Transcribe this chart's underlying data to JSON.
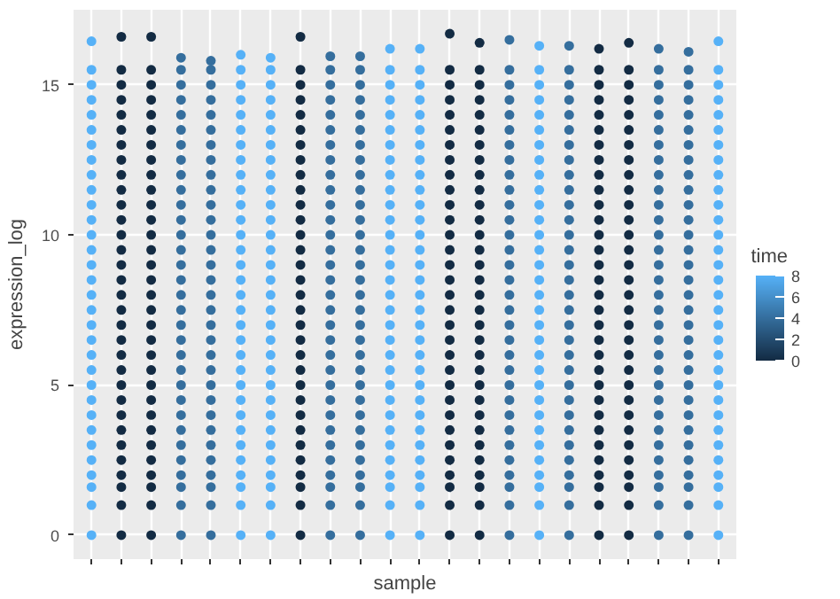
{
  "chart_data": {
    "type": "scatter",
    "xlabel": "sample",
    "ylabel": "expression_log",
    "clabel": "time",
    "categories": [
      null,
      null,
      null,
      null,
      null,
      null,
      null,
      null,
      null,
      null,
      null,
      null,
      null,
      null,
      null,
      null,
      null,
      null,
      null,
      null,
      null,
      null
    ],
    "ylim": [
      -0.8,
      17.5
    ],
    "yticks": [
      0,
      5,
      10,
      15
    ],
    "clim": [
      0,
      8
    ],
    "cticks": [
      0,
      2,
      4,
      6,
      8
    ],
    "grid": true,
    "marker": "circle",
    "series": [
      {
        "values": [
          0,
          0,
          0,
          0,
          0,
          0,
          0,
          0,
          0,
          0,
          0,
          0,
          0,
          0,
          0,
          0,
          0,
          0,
          0,
          0,
          0,
          0
        ],
        "colors": [
          "#56b1f7",
          "#132b43",
          "#132b43",
          "#356e9d",
          "#356e9d",
          "#56b1f7",
          "#56b1f7",
          "#132b43",
          "#356e9d",
          "#356e9d",
          "#56b1f7",
          "#56b1f7",
          "#132b43",
          "#132b43",
          "#356e9d",
          "#56b1f7",
          "#356e9d",
          "#132b43",
          "#132b43",
          "#356e9d",
          "#356e9d",
          "#56b1f7"
        ]
      },
      {
        "values": [
          1,
          1,
          1,
          1,
          1,
          1,
          1,
          1,
          1,
          1,
          1,
          1,
          1,
          1,
          1,
          1,
          1,
          1,
          1,
          1,
          1,
          1
        ],
        "colors": [
          "#56b1f7",
          "#132b43",
          "#132b43",
          "#356e9d",
          "#356e9d",
          "#56b1f7",
          "#56b1f7",
          "#132b43",
          "#356e9d",
          "#356e9d",
          "#56b1f7",
          "#56b1f7",
          "#132b43",
          "#132b43",
          "#356e9d",
          "#56b1f7",
          "#356e9d",
          "#132b43",
          "#132b43",
          "#356e9d",
          "#356e9d",
          "#56b1f7"
        ]
      },
      {
        "values": [
          1.6,
          1.6,
          1.6,
          1.6,
          1.6,
          1.6,
          1.6,
          1.6,
          1.6,
          1.6,
          1.6,
          1.6,
          1.6,
          1.6,
          1.6,
          1.6,
          1.6,
          1.6,
          1.6,
          1.6,
          1.6,
          1.6
        ],
        "colors": [
          "#56b1f7",
          "#132b43",
          "#132b43",
          "#356e9d",
          "#356e9d",
          "#56b1f7",
          "#56b1f7",
          "#132b43",
          "#356e9d",
          "#356e9d",
          "#56b1f7",
          "#56b1f7",
          "#132b43",
          "#132b43",
          "#356e9d",
          "#56b1f7",
          "#356e9d",
          "#132b43",
          "#132b43",
          "#356e9d",
          "#356e9d",
          "#56b1f7"
        ]
      },
      {
        "values": [
          2,
          2,
          2,
          2,
          2,
          2,
          2,
          2,
          2,
          2,
          2,
          2,
          2,
          2,
          2,
          2,
          2,
          2,
          2,
          2,
          2,
          2
        ],
        "colors": [
          "#56b1f7",
          "#132b43",
          "#132b43",
          "#356e9d",
          "#356e9d",
          "#56b1f7",
          "#56b1f7",
          "#132b43",
          "#356e9d",
          "#356e9d",
          "#56b1f7",
          "#56b1f7",
          "#132b43",
          "#132b43",
          "#356e9d",
          "#56b1f7",
          "#356e9d",
          "#132b43",
          "#132b43",
          "#356e9d",
          "#356e9d",
          "#56b1f7"
        ]
      },
      {
        "values": [
          2.5,
          2.5,
          2.5,
          2.5,
          2.5,
          2.5,
          2.5,
          2.5,
          2.5,
          2.5,
          2.5,
          2.5,
          2.5,
          2.5,
          2.5,
          2.5,
          2.5,
          2.5,
          2.5,
          2.5,
          2.5,
          2.5
        ],
        "colors": [
          "#56b1f7",
          "#132b43",
          "#132b43",
          "#356e9d",
          "#356e9d",
          "#56b1f7",
          "#56b1f7",
          "#132b43",
          "#356e9d",
          "#356e9d",
          "#56b1f7",
          "#56b1f7",
          "#132b43",
          "#132b43",
          "#356e9d",
          "#56b1f7",
          "#356e9d",
          "#132b43",
          "#132b43",
          "#356e9d",
          "#356e9d",
          "#56b1f7"
        ]
      },
      {
        "values": [
          3,
          3,
          3,
          3,
          3,
          3,
          3,
          3,
          3,
          3,
          3,
          3,
          3,
          3,
          3,
          3,
          3,
          3,
          3,
          3,
          3,
          3
        ],
        "colors": [
          "#56b1f7",
          "#132b43",
          "#132b43",
          "#356e9d",
          "#356e9d",
          "#56b1f7",
          "#56b1f7",
          "#132b43",
          "#356e9d",
          "#356e9d",
          "#56b1f7",
          "#56b1f7",
          "#132b43",
          "#132b43",
          "#356e9d",
          "#56b1f7",
          "#356e9d",
          "#132b43",
          "#132b43",
          "#356e9d",
          "#356e9d",
          "#56b1f7"
        ]
      },
      {
        "values": [
          3.5,
          3.5,
          3.5,
          3.5,
          3.5,
          3.5,
          3.5,
          3.5,
          3.5,
          3.5,
          3.5,
          3.5,
          3.5,
          3.5,
          3.5,
          3.5,
          3.5,
          3.5,
          3.5,
          3.5,
          3.5,
          3.5
        ],
        "colors": [
          "#56b1f7",
          "#132b43",
          "#132b43",
          "#356e9d",
          "#356e9d",
          "#56b1f7",
          "#56b1f7",
          "#132b43",
          "#356e9d",
          "#356e9d",
          "#56b1f7",
          "#56b1f7",
          "#132b43",
          "#132b43",
          "#356e9d",
          "#56b1f7",
          "#356e9d",
          "#132b43",
          "#132b43",
          "#356e9d",
          "#356e9d",
          "#56b1f7"
        ]
      },
      {
        "values": [
          4,
          4,
          4,
          4,
          4,
          4,
          4,
          4,
          4,
          4,
          4,
          4,
          4,
          4,
          4,
          4,
          4,
          4,
          4,
          4,
          4,
          4
        ],
        "colors": [
          "#56b1f7",
          "#132b43",
          "#132b43",
          "#356e9d",
          "#356e9d",
          "#56b1f7",
          "#56b1f7",
          "#132b43",
          "#356e9d",
          "#356e9d",
          "#56b1f7",
          "#56b1f7",
          "#132b43",
          "#132b43",
          "#356e9d",
          "#56b1f7",
          "#356e9d",
          "#132b43",
          "#132b43",
          "#356e9d",
          "#356e9d",
          "#56b1f7"
        ]
      },
      {
        "values": [
          4.5,
          4.5,
          4.5,
          4.5,
          4.5,
          4.5,
          4.5,
          4.5,
          4.5,
          4.5,
          4.5,
          4.5,
          4.5,
          4.5,
          4.5,
          4.5,
          4.5,
          4.5,
          4.5,
          4.5,
          4.5,
          4.5
        ],
        "colors": [
          "#56b1f7",
          "#132b43",
          "#132b43",
          "#356e9d",
          "#356e9d",
          "#56b1f7",
          "#56b1f7",
          "#132b43",
          "#356e9d",
          "#356e9d",
          "#56b1f7",
          "#56b1f7",
          "#132b43",
          "#132b43",
          "#356e9d",
          "#56b1f7",
          "#356e9d",
          "#132b43",
          "#132b43",
          "#356e9d",
          "#356e9d",
          "#56b1f7"
        ]
      },
      {
        "values": [
          5,
          5,
          5,
          5,
          5,
          5,
          5,
          5,
          5,
          5,
          5,
          5,
          5,
          5,
          5,
          5,
          5,
          5,
          5,
          5,
          5,
          5
        ],
        "colors": [
          "#56b1f7",
          "#132b43",
          "#132b43",
          "#356e9d",
          "#356e9d",
          "#56b1f7",
          "#56b1f7",
          "#132b43",
          "#356e9d",
          "#356e9d",
          "#56b1f7",
          "#56b1f7",
          "#132b43",
          "#132b43",
          "#356e9d",
          "#56b1f7",
          "#356e9d",
          "#132b43",
          "#132b43",
          "#356e9d",
          "#356e9d",
          "#56b1f7"
        ]
      },
      {
        "values": [
          5.5,
          5.5,
          5.5,
          5.5,
          5.5,
          5.5,
          5.5,
          5.5,
          5.5,
          5.5,
          5.5,
          5.5,
          5.5,
          5.5,
          5.5,
          5.5,
          5.5,
          5.5,
          5.5,
          5.5,
          5.5,
          5.5
        ],
        "colors": [
          "#56b1f7",
          "#132b43",
          "#132b43",
          "#356e9d",
          "#356e9d",
          "#56b1f7",
          "#56b1f7",
          "#132b43",
          "#356e9d",
          "#356e9d",
          "#56b1f7",
          "#56b1f7",
          "#132b43",
          "#132b43",
          "#356e9d",
          "#56b1f7",
          "#356e9d",
          "#132b43",
          "#132b43",
          "#356e9d",
          "#356e9d",
          "#56b1f7"
        ]
      },
      {
        "values": [
          6,
          6,
          6,
          6,
          6,
          6,
          6,
          6,
          6,
          6,
          6,
          6,
          6,
          6,
          6,
          6,
          6,
          6,
          6,
          6,
          6,
          6
        ],
        "colors": [
          "#56b1f7",
          "#132b43",
          "#132b43",
          "#356e9d",
          "#356e9d",
          "#56b1f7",
          "#56b1f7",
          "#132b43",
          "#356e9d",
          "#356e9d",
          "#56b1f7",
          "#56b1f7",
          "#132b43",
          "#132b43",
          "#356e9d",
          "#56b1f7",
          "#356e9d",
          "#132b43",
          "#132b43",
          "#356e9d",
          "#356e9d",
          "#56b1f7"
        ]
      },
      {
        "values": [
          6.5,
          6.5,
          6.5,
          6.5,
          6.5,
          6.5,
          6.5,
          6.5,
          6.5,
          6.5,
          6.5,
          6.5,
          6.5,
          6.5,
          6.5,
          6.5,
          6.5,
          6.5,
          6.5,
          6.5,
          6.5,
          6.5
        ],
        "colors": [
          "#56b1f7",
          "#132b43",
          "#132b43",
          "#356e9d",
          "#356e9d",
          "#56b1f7",
          "#56b1f7",
          "#132b43",
          "#356e9d",
          "#356e9d",
          "#56b1f7",
          "#56b1f7",
          "#132b43",
          "#132b43",
          "#356e9d",
          "#56b1f7",
          "#356e9d",
          "#132b43",
          "#132b43",
          "#356e9d",
          "#356e9d",
          "#56b1f7"
        ]
      },
      {
        "values": [
          7,
          7,
          7,
          7,
          7,
          7,
          7,
          7,
          7,
          7,
          7,
          7,
          7,
          7,
          7,
          7,
          7,
          7,
          7,
          7,
          7,
          7
        ],
        "colors": [
          "#56b1f7",
          "#132b43",
          "#132b43",
          "#356e9d",
          "#356e9d",
          "#56b1f7",
          "#56b1f7",
          "#132b43",
          "#356e9d",
          "#356e9d",
          "#56b1f7",
          "#56b1f7",
          "#132b43",
          "#132b43",
          "#356e9d",
          "#56b1f7",
          "#356e9d",
          "#132b43",
          "#132b43",
          "#356e9d",
          "#356e9d",
          "#56b1f7"
        ]
      },
      {
        "values": [
          7.5,
          7.5,
          7.5,
          7.5,
          7.5,
          7.5,
          7.5,
          7.5,
          7.5,
          7.5,
          7.5,
          7.5,
          7.5,
          7.5,
          7.5,
          7.5,
          7.5,
          7.5,
          7.5,
          7.5,
          7.5,
          7.5
        ],
        "colors": [
          "#56b1f7",
          "#132b43",
          "#132b43",
          "#356e9d",
          "#356e9d",
          "#56b1f7",
          "#56b1f7",
          "#132b43",
          "#356e9d",
          "#356e9d",
          "#56b1f7",
          "#56b1f7",
          "#132b43",
          "#132b43",
          "#356e9d",
          "#56b1f7",
          "#356e9d",
          "#132b43",
          "#132b43",
          "#356e9d",
          "#356e9d",
          "#56b1f7"
        ]
      },
      {
        "values": [
          8,
          8,
          8,
          8,
          8,
          8,
          8,
          8,
          8,
          8,
          8,
          8,
          8,
          8,
          8,
          8,
          8,
          8,
          8,
          8,
          8,
          8
        ],
        "colors": [
          "#56b1f7",
          "#132b43",
          "#132b43",
          "#356e9d",
          "#356e9d",
          "#56b1f7",
          "#56b1f7",
          "#132b43",
          "#356e9d",
          "#356e9d",
          "#56b1f7",
          "#56b1f7",
          "#132b43",
          "#132b43",
          "#356e9d",
          "#56b1f7",
          "#356e9d",
          "#132b43",
          "#132b43",
          "#356e9d",
          "#356e9d",
          "#56b1f7"
        ]
      },
      {
        "values": [
          8.5,
          8.5,
          8.5,
          8.5,
          8.5,
          8.5,
          8.5,
          8.5,
          8.5,
          8.5,
          8.5,
          8.5,
          8.5,
          8.5,
          8.5,
          8.5,
          8.5,
          8.5,
          8.5,
          8.5,
          8.5,
          8.5
        ],
        "colors": [
          "#56b1f7",
          "#132b43",
          "#132b43",
          "#356e9d",
          "#356e9d",
          "#56b1f7",
          "#56b1f7",
          "#132b43",
          "#356e9d",
          "#356e9d",
          "#56b1f7",
          "#56b1f7",
          "#132b43",
          "#132b43",
          "#356e9d",
          "#56b1f7",
          "#356e9d",
          "#132b43",
          "#132b43",
          "#356e9d",
          "#356e9d",
          "#56b1f7"
        ]
      },
      {
        "values": [
          9,
          9,
          9,
          9,
          9,
          9,
          9,
          9,
          9,
          9,
          9,
          9,
          9,
          9,
          9,
          9,
          9,
          9,
          9,
          9,
          9,
          9
        ],
        "colors": [
          "#56b1f7",
          "#132b43",
          "#132b43",
          "#356e9d",
          "#356e9d",
          "#56b1f7",
          "#56b1f7",
          "#132b43",
          "#356e9d",
          "#356e9d",
          "#56b1f7",
          "#56b1f7",
          "#132b43",
          "#132b43",
          "#356e9d",
          "#56b1f7",
          "#356e9d",
          "#132b43",
          "#132b43",
          "#356e9d",
          "#356e9d",
          "#56b1f7"
        ]
      },
      {
        "values": [
          9.5,
          9.5,
          9.5,
          9.5,
          9.5,
          9.5,
          9.5,
          9.5,
          9.5,
          9.5,
          9.5,
          9.5,
          9.5,
          9.5,
          9.5,
          9.5,
          9.5,
          9.5,
          9.5,
          9.5,
          9.5,
          9.5
        ],
        "colors": [
          "#56b1f7",
          "#132b43",
          "#132b43",
          "#356e9d",
          "#356e9d",
          "#56b1f7",
          "#56b1f7",
          "#132b43",
          "#356e9d",
          "#356e9d",
          "#56b1f7",
          "#56b1f7",
          "#132b43",
          "#132b43",
          "#356e9d",
          "#56b1f7",
          "#356e9d",
          "#132b43",
          "#132b43",
          "#356e9d",
          "#356e9d",
          "#56b1f7"
        ]
      },
      {
        "values": [
          10,
          10,
          10,
          10,
          10,
          10,
          10,
          10,
          10,
          10,
          10,
          10,
          10,
          10,
          10,
          10,
          10,
          10,
          10,
          10,
          10,
          10
        ],
        "colors": [
          "#56b1f7",
          "#132b43",
          "#132b43",
          "#356e9d",
          "#356e9d",
          "#56b1f7",
          "#56b1f7",
          "#132b43",
          "#356e9d",
          "#356e9d",
          "#56b1f7",
          "#56b1f7",
          "#132b43",
          "#132b43",
          "#356e9d",
          "#56b1f7",
          "#356e9d",
          "#132b43",
          "#132b43",
          "#356e9d",
          "#356e9d",
          "#56b1f7"
        ]
      },
      {
        "values": [
          10.5,
          10.5,
          10.5,
          10.5,
          10.5,
          10.5,
          10.5,
          10.5,
          10.5,
          10.5,
          10.5,
          10.5,
          10.5,
          10.5,
          10.5,
          10.5,
          10.5,
          10.5,
          10.5,
          10.5,
          10.5,
          10.5
        ],
        "colors": [
          "#56b1f7",
          "#132b43",
          "#132b43",
          "#356e9d",
          "#356e9d",
          "#56b1f7",
          "#56b1f7",
          "#132b43",
          "#356e9d",
          "#356e9d",
          "#56b1f7",
          "#56b1f7",
          "#132b43",
          "#132b43",
          "#356e9d",
          "#56b1f7",
          "#356e9d",
          "#132b43",
          "#132b43",
          "#356e9d",
          "#356e9d",
          "#56b1f7"
        ]
      },
      {
        "values": [
          11,
          11,
          11,
          11,
          11,
          11,
          11,
          11,
          11,
          11,
          11,
          11,
          11,
          11,
          11,
          11,
          11,
          11,
          11,
          11,
          11,
          11
        ],
        "colors": [
          "#56b1f7",
          "#132b43",
          "#132b43",
          "#356e9d",
          "#356e9d",
          "#56b1f7",
          "#56b1f7",
          "#132b43",
          "#356e9d",
          "#356e9d",
          "#56b1f7",
          "#56b1f7",
          "#132b43",
          "#132b43",
          "#356e9d",
          "#56b1f7",
          "#356e9d",
          "#132b43",
          "#132b43",
          "#356e9d",
          "#356e9d",
          "#56b1f7"
        ]
      },
      {
        "values": [
          11.5,
          11.5,
          11.5,
          11.5,
          11.5,
          11.5,
          11.5,
          11.5,
          11.5,
          11.5,
          11.5,
          11.5,
          11.5,
          11.5,
          11.5,
          11.5,
          11.5,
          11.5,
          11.5,
          11.5,
          11.5,
          11.5
        ],
        "colors": [
          "#56b1f7",
          "#132b43",
          "#132b43",
          "#356e9d",
          "#356e9d",
          "#56b1f7",
          "#56b1f7",
          "#132b43",
          "#356e9d",
          "#356e9d",
          "#56b1f7",
          "#56b1f7",
          "#132b43",
          "#132b43",
          "#356e9d",
          "#56b1f7",
          "#356e9d",
          "#132b43",
          "#132b43",
          "#356e9d",
          "#356e9d",
          "#56b1f7"
        ]
      },
      {
        "values": [
          12,
          12,
          12,
          12,
          12,
          12,
          12,
          12,
          12,
          12,
          12,
          12,
          12,
          12,
          12,
          12,
          12,
          12,
          12,
          12,
          12,
          12
        ],
        "colors": [
          "#56b1f7",
          "#132b43",
          "#132b43",
          "#356e9d",
          "#356e9d",
          "#56b1f7",
          "#56b1f7",
          "#132b43",
          "#356e9d",
          "#356e9d",
          "#56b1f7",
          "#56b1f7",
          "#132b43",
          "#132b43",
          "#356e9d",
          "#56b1f7",
          "#356e9d",
          "#132b43",
          "#132b43",
          "#356e9d",
          "#356e9d",
          "#56b1f7"
        ]
      },
      {
        "values": [
          12.5,
          12.5,
          12.5,
          12.5,
          12.5,
          12.5,
          12.5,
          12.5,
          12.5,
          12.5,
          12.5,
          12.5,
          12.5,
          12.5,
          12.5,
          12.5,
          12.5,
          12.5,
          12.5,
          12.5,
          12.5,
          12.5
        ],
        "colors": [
          "#56b1f7",
          "#132b43",
          "#132b43",
          "#356e9d",
          "#356e9d",
          "#56b1f7",
          "#56b1f7",
          "#132b43",
          "#356e9d",
          "#356e9d",
          "#56b1f7",
          "#56b1f7",
          "#132b43",
          "#132b43",
          "#356e9d",
          "#56b1f7",
          "#356e9d",
          "#132b43",
          "#132b43",
          "#356e9d",
          "#356e9d",
          "#56b1f7"
        ]
      },
      {
        "values": [
          13,
          13,
          13,
          13,
          13,
          13,
          13,
          13,
          13,
          13,
          13,
          13,
          13,
          13,
          13,
          13,
          13,
          13,
          13,
          13,
          13,
          13
        ],
        "colors": [
          "#56b1f7",
          "#132b43",
          "#132b43",
          "#356e9d",
          "#356e9d",
          "#56b1f7",
          "#56b1f7",
          "#132b43",
          "#356e9d",
          "#356e9d",
          "#56b1f7",
          "#56b1f7",
          "#132b43",
          "#132b43",
          "#356e9d",
          "#56b1f7",
          "#356e9d",
          "#132b43",
          "#132b43",
          "#356e9d",
          "#356e9d",
          "#56b1f7"
        ]
      },
      {
        "values": [
          13.5,
          13.5,
          13.5,
          13.5,
          13.5,
          13.5,
          13.5,
          13.5,
          13.5,
          13.5,
          13.5,
          13.5,
          13.5,
          13.5,
          13.5,
          13.5,
          13.5,
          13.5,
          13.5,
          13.5,
          13.5,
          13.5
        ],
        "colors": [
          "#56b1f7",
          "#132b43",
          "#132b43",
          "#356e9d",
          "#356e9d",
          "#56b1f7",
          "#56b1f7",
          "#132b43",
          "#356e9d",
          "#356e9d",
          "#56b1f7",
          "#56b1f7",
          "#132b43",
          "#132b43",
          "#356e9d",
          "#56b1f7",
          "#356e9d",
          "#132b43",
          "#132b43",
          "#356e9d",
          "#356e9d",
          "#56b1f7"
        ]
      },
      {
        "values": [
          14,
          14,
          14,
          14,
          14,
          14,
          14,
          14,
          14,
          14,
          14,
          14,
          14,
          14,
          14,
          14,
          14,
          14,
          14,
          14,
          14,
          14
        ],
        "colors": [
          "#56b1f7",
          "#132b43",
          "#132b43",
          "#356e9d",
          "#356e9d",
          "#56b1f7",
          "#56b1f7",
          "#132b43",
          "#356e9d",
          "#356e9d",
          "#56b1f7",
          "#56b1f7",
          "#132b43",
          "#132b43",
          "#356e9d",
          "#56b1f7",
          "#356e9d",
          "#132b43",
          "#132b43",
          "#356e9d",
          "#356e9d",
          "#56b1f7"
        ]
      },
      {
        "values": [
          14.5,
          14.5,
          14.5,
          14.5,
          14.5,
          14.5,
          14.5,
          14.5,
          14.5,
          14.5,
          14.5,
          14.5,
          14.5,
          14.5,
          14.5,
          14.5,
          14.5,
          14.5,
          14.5,
          14.5,
          14.5,
          14.5
        ],
        "colors": [
          "#56b1f7",
          "#132b43",
          "#132b43",
          "#356e9d",
          "#356e9d",
          "#56b1f7",
          "#56b1f7",
          "#132b43",
          "#356e9d",
          "#356e9d",
          "#56b1f7",
          "#56b1f7",
          "#132b43",
          "#132b43",
          "#356e9d",
          "#56b1f7",
          "#356e9d",
          "#132b43",
          "#132b43",
          "#356e9d",
          "#356e9d",
          "#56b1f7"
        ]
      },
      {
        "values": [
          15,
          15,
          15,
          15,
          15,
          15,
          15,
          15,
          15,
          15,
          15,
          15,
          15,
          15,
          15,
          15,
          15,
          15,
          15,
          15,
          15,
          15
        ],
        "colors": [
          "#56b1f7",
          "#132b43",
          "#132b43",
          "#356e9d",
          "#356e9d",
          "#56b1f7",
          "#56b1f7",
          "#132b43",
          "#356e9d",
          "#356e9d",
          "#56b1f7",
          "#56b1f7",
          "#132b43",
          "#132b43",
          "#356e9d",
          "#56b1f7",
          "#356e9d",
          "#132b43",
          "#132b43",
          "#356e9d",
          "#356e9d",
          "#56b1f7"
        ]
      },
      {
        "values": [
          15.5,
          15.5,
          15.5,
          15.5,
          15.5,
          15.5,
          15.5,
          15.5,
          15.5,
          15.5,
          15.5,
          15.5,
          15.5,
          15.5,
          15.5,
          15.5,
          15.5,
          15.5,
          15.5,
          15.5,
          15.5,
          15.5
        ],
        "colors": [
          "#56b1f7",
          "#132b43",
          "#132b43",
          "#356e9d",
          "#356e9d",
          "#56b1f7",
          "#56b1f7",
          "#132b43",
          "#356e9d",
          "#356e9d",
          "#56b1f7",
          "#56b1f7",
          "#132b43",
          "#132b43",
          "#356e9d",
          "#56b1f7",
          "#356e9d",
          "#132b43",
          "#132b43",
          "#356e9d",
          "#356e9d",
          "#56b1f7"
        ]
      },
      {
        "values": [
          16.45,
          16.6,
          16.6,
          15.9,
          15.8,
          16.0,
          15.9,
          16.6,
          15.95,
          15.95,
          16.2,
          16.2,
          16.7,
          16.4,
          16.5,
          16.3,
          16.3,
          16.2,
          16.4,
          16.2,
          16.1,
          16.45
        ],
        "colors": [
          "#56b1f7",
          "#132b43",
          "#132b43",
          "#356e9d",
          "#356e9d",
          "#56b1f7",
          "#56b1f7",
          "#132b43",
          "#356e9d",
          "#356e9d",
          "#56b1f7",
          "#56b1f7",
          "#132b43",
          "#132b43",
          "#356e9d",
          "#56b1f7",
          "#356e9d",
          "#132b43",
          "#132b43",
          "#356e9d",
          "#356e9d",
          "#56b1f7"
        ]
      }
    ]
  }
}
